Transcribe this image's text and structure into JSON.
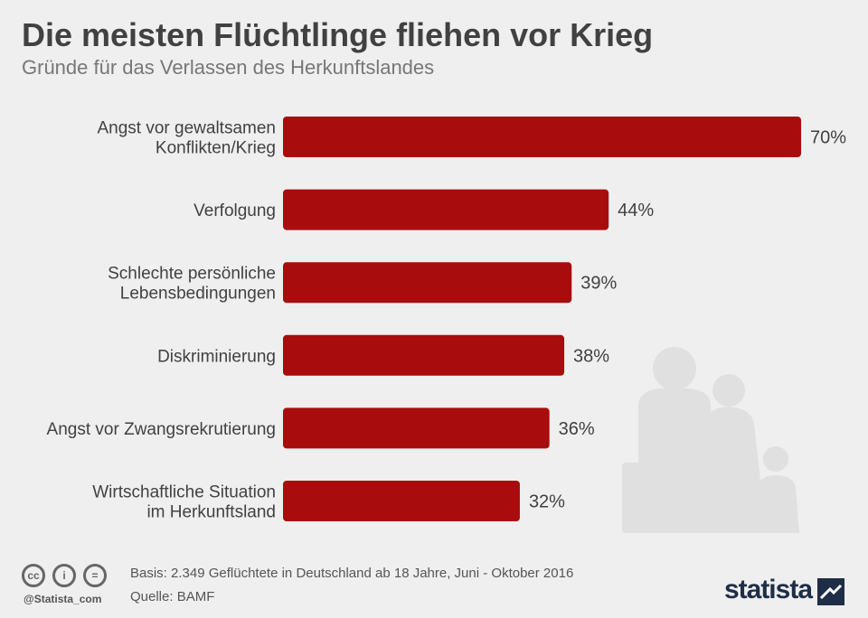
{
  "header": {
    "title": "Die meisten Flüchtlinge fliehen vor Krieg",
    "subtitle": "Gründe für das Verlassen des Herkunftslandes"
  },
  "chart_data": {
    "type": "bar",
    "orientation": "horizontal",
    "title": "Die meisten Flüchtlinge fliehen vor Krieg",
    "subtitle": "Gründe für das Verlassen des Herkunftslandes",
    "categories": [
      [
        "Angst vor gewaltsamen",
        "Konflikten/Krieg"
      ],
      [
        "Verfolgung"
      ],
      [
        "Schlechte persönliche",
        "Lebensbedingungen"
      ],
      [
        "Diskriminierung"
      ],
      [
        "Angst vor Zwangsrekrutierung"
      ],
      [
        "Wirtschaftliche Situation",
        "im Herkunftsland"
      ]
    ],
    "values": [
      70,
      44,
      39,
      38,
      36,
      32
    ],
    "value_labels": [
      "70%",
      "44%",
      "39%",
      "38%",
      "36%",
      "32%"
    ],
    "unit": "%",
    "xlim": [
      0,
      70
    ],
    "grid": false,
    "bar_color": "#a80c0c"
  },
  "footer": {
    "icons": [
      "cc-icon",
      "attribution-icon",
      "no-derivatives-icon"
    ],
    "icon_labels": [
      "cc",
      "i",
      "="
    ],
    "handle": "@Statista_com",
    "basis": "Basis: 2.349 Geflüchtete in Deutschland ab 18 Jahre, Juni - Oktober 2016",
    "source": "Quelle: BAMF",
    "brand": "statista"
  },
  "colors": {
    "background": "#efefef",
    "bar": "#a80c0c",
    "title": "#414141",
    "silhouette": "#e0e0e0"
  }
}
